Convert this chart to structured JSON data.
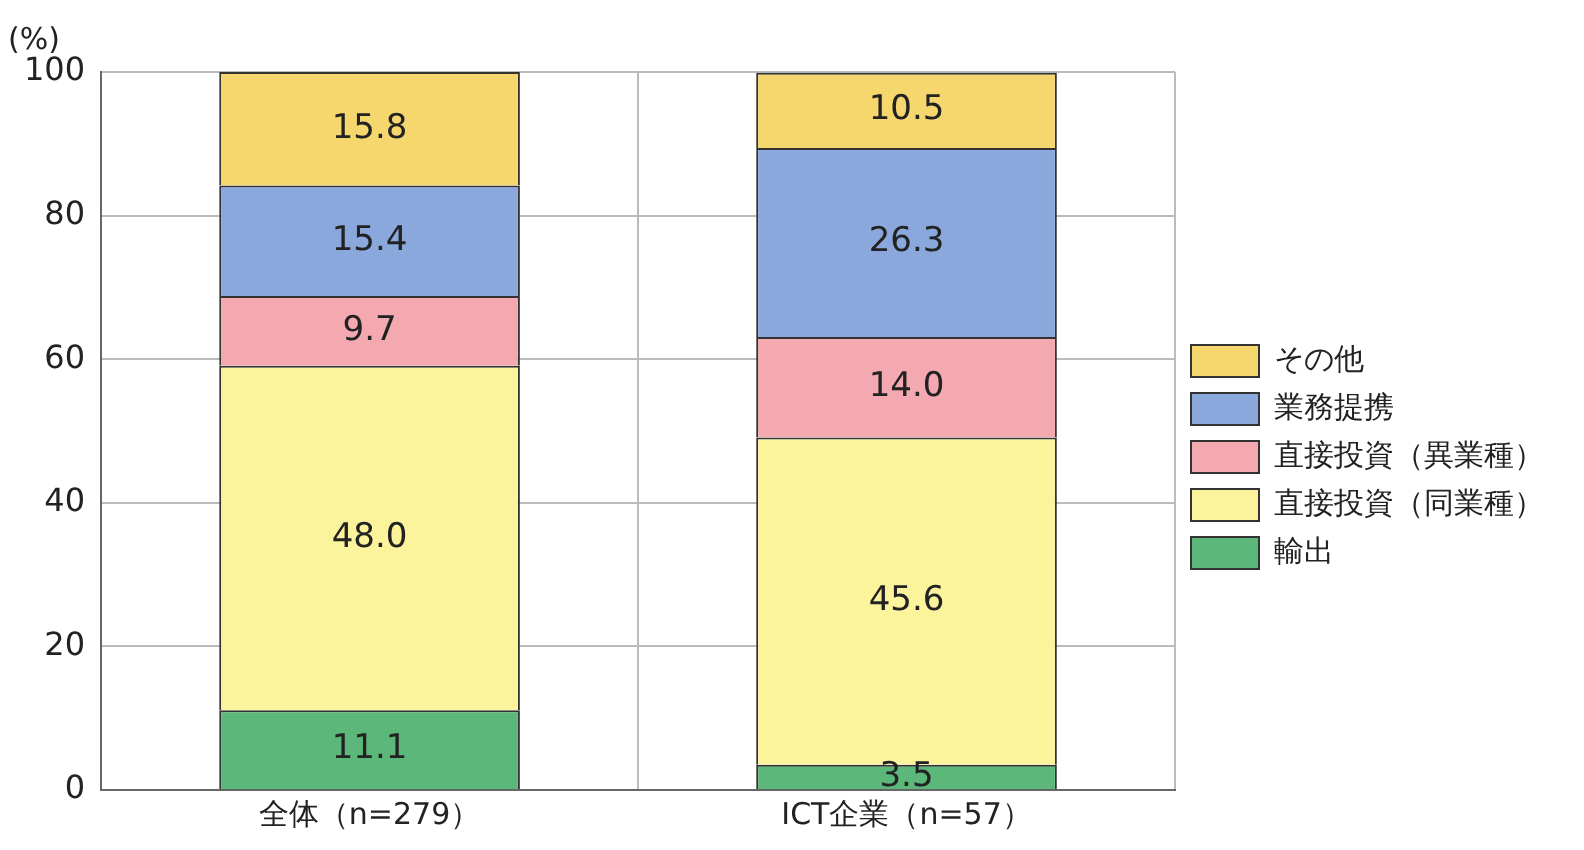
{
  "chart_data": {
    "type": "bar",
    "stacked": true,
    "ylabel": "(%)",
    "categories": [
      "全体（n=279）",
      "ICT企業（n=57）"
    ],
    "series": [
      {
        "name": "輸出",
        "color": "#5cb87a",
        "values": [
          11.1,
          3.5
        ],
        "value_labels": [
          "11.1",
          "3.5"
        ]
      },
      {
        "name": "直接投資（同業種）",
        "color": "#fbf49c",
        "values": [
          48,
          45.6
        ],
        "value_labels": [
          "48.0",
          "45.6"
        ]
      },
      {
        "name": "直接投資（異業種）",
        "color": "#f4a9b0",
        "values": [
          9.7,
          14
        ],
        "value_labels": [
          "9.7",
          "14.0"
        ]
      },
      {
        "name": "業務提携",
        "color": "#8aa8dc",
        "values": [
          15.4,
          26.3
        ],
        "value_labels": [
          "15.4",
          "26.3"
        ]
      },
      {
        "name": "その他",
        "color": "#f5d76e",
        "values": [
          15.8,
          10.5
        ],
        "value_labels": [
          "15.8",
          "10.5"
        ]
      }
    ],
    "ylim": [
      0,
      100
    ],
    "yticks": [
      0,
      20,
      40,
      60,
      80,
      100
    ],
    "grid": true,
    "legend": "right"
  }
}
